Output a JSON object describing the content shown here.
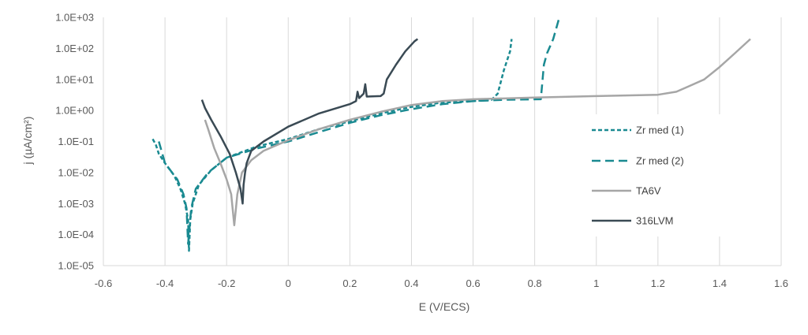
{
  "chart_data": {
    "type": "line",
    "title": "",
    "xlabel": "E (V/ECS)",
    "ylabel": "j (µA/cm²)",
    "x_scale": "linear",
    "y_scale": "log",
    "xlim": [
      -0.6,
      1.6
    ],
    "ylim": [
      1e-05,
      1000
    ],
    "x_ticks": [
      "-0.6",
      "-0.4",
      "-0.2",
      "0",
      "0.2",
      "0.4",
      "0.6",
      "0.8",
      "1",
      "1.2",
      "1.4",
      "1.6"
    ],
    "y_ticks": [
      "1.0E-05",
      "1.0E-04",
      "1.0E-03",
      "1.0E-02",
      "1.0E-01",
      "1.0E+00",
      "1.0E+01",
      "1.0E+02",
      "1.0E+03"
    ],
    "grid": "vertical",
    "legend_position": "right",
    "series": [
      {
        "name": "Zr med (1)",
        "color": "#1a8a91",
        "dash": "short-dash",
        "points": [
          [
            -0.44,
            0.12
          ],
          [
            -0.43,
            0.08
          ],
          [
            -0.42,
            0.04
          ],
          [
            -0.4,
            0.02
          ],
          [
            -0.37,
            0.008
          ],
          [
            -0.35,
            0.003
          ],
          [
            -0.335,
            0.001
          ],
          [
            -0.325,
            0.0003
          ],
          [
            -0.322,
            3e-05
          ],
          [
            -0.318,
            0.0003
          ],
          [
            -0.31,
            0.001
          ],
          [
            -0.29,
            0.004
          ],
          [
            -0.25,
            0.012
          ],
          [
            -0.2,
            0.03
          ],
          [
            -0.1,
            0.07
          ],
          [
            0.0,
            0.12
          ],
          [
            0.1,
            0.25
          ],
          [
            0.2,
            0.45
          ],
          [
            0.3,
            0.8
          ],
          [
            0.4,
            1.3
          ],
          [
            0.5,
            1.8
          ],
          [
            0.6,
            2.0
          ],
          [
            0.66,
            2.2
          ],
          [
            0.68,
            3.5
          ],
          [
            0.7,
            20
          ],
          [
            0.72,
            80
          ],
          [
            0.725,
            200
          ]
        ]
      },
      {
        "name": "Zr med (2)",
        "color": "#1a8a91",
        "dash": "long-dash",
        "points": [
          [
            -0.42,
            0.1
          ],
          [
            -0.4,
            0.02
          ],
          [
            -0.36,
            0.006
          ],
          [
            -0.34,
            0.002
          ],
          [
            -0.33,
            0.0007
          ],
          [
            -0.325,
            5e-05
          ],
          [
            -0.315,
            0.0007
          ],
          [
            -0.3,
            0.003
          ],
          [
            -0.26,
            0.01
          ],
          [
            -0.2,
            0.03
          ],
          [
            -0.1,
            0.06
          ],
          [
            0.0,
            0.1
          ],
          [
            0.1,
            0.2
          ],
          [
            0.2,
            0.4
          ],
          [
            0.3,
            0.7
          ],
          [
            0.4,
            1.1
          ],
          [
            0.5,
            1.6
          ],
          [
            0.6,
            2.0
          ],
          [
            0.7,
            2.2
          ],
          [
            0.82,
            2.3
          ],
          [
            0.83,
            30
          ],
          [
            0.84,
            70
          ],
          [
            0.86,
            200
          ],
          [
            0.88,
            1000
          ]
        ]
      },
      {
        "name": "TA6V",
        "color": "#a6a6a6",
        "dash": "solid",
        "points": [
          [
            -0.27,
            0.5
          ],
          [
            -0.26,
            0.25
          ],
          [
            -0.24,
            0.06
          ],
          [
            -0.22,
            0.02
          ],
          [
            -0.2,
            0.006
          ],
          [
            -0.185,
            0.002
          ],
          [
            -0.175,
            0.0002
          ],
          [
            -0.165,
            0.002
          ],
          [
            -0.15,
            0.01
          ],
          [
            -0.12,
            0.025
          ],
          [
            -0.08,
            0.05
          ],
          [
            0.0,
            0.11
          ],
          [
            0.1,
            0.25
          ],
          [
            0.2,
            0.5
          ],
          [
            0.3,
            0.9
          ],
          [
            0.4,
            1.5
          ],
          [
            0.5,
            2.0
          ],
          [
            0.6,
            2.3
          ],
          [
            0.8,
            2.6
          ],
          [
            1.0,
            2.9
          ],
          [
            1.2,
            3.2
          ],
          [
            1.26,
            4
          ],
          [
            1.3,
            6
          ],
          [
            1.35,
            10
          ],
          [
            1.4,
            25
          ],
          [
            1.45,
            70
          ],
          [
            1.5,
            200
          ]
        ]
      },
      {
        "name": "316LVM",
        "color": "#3a4a54",
        "dash": "solid",
        "points": [
          [
            -0.28,
            2.2
          ],
          [
            -0.27,
            1.2
          ],
          [
            -0.25,
            0.5
          ],
          [
            -0.22,
            0.15
          ],
          [
            -0.19,
            0.04
          ],
          [
            -0.17,
            0.01
          ],
          [
            -0.155,
            0.003
          ],
          [
            -0.148,
            0.001
          ],
          [
            -0.145,
            0.004
          ],
          [
            -0.14,
            0.01
          ],
          [
            -0.135,
            0.02
          ],
          [
            -0.12,
            0.05
          ],
          [
            -0.08,
            0.1
          ],
          [
            0.0,
            0.3
          ],
          [
            0.1,
            0.8
          ],
          [
            0.2,
            1.6
          ],
          [
            0.22,
            2.0
          ],
          [
            0.225,
            4
          ],
          [
            0.23,
            2.5
          ],
          [
            0.245,
            3.5
          ],
          [
            0.25,
            7
          ],
          [
            0.255,
            2.8
          ],
          [
            0.3,
            2.9
          ],
          [
            0.31,
            3.5
          ],
          [
            0.32,
            10
          ],
          [
            0.35,
            30
          ],
          [
            0.38,
            80
          ],
          [
            0.41,
            170
          ],
          [
            0.42,
            200
          ]
        ]
      }
    ]
  }
}
